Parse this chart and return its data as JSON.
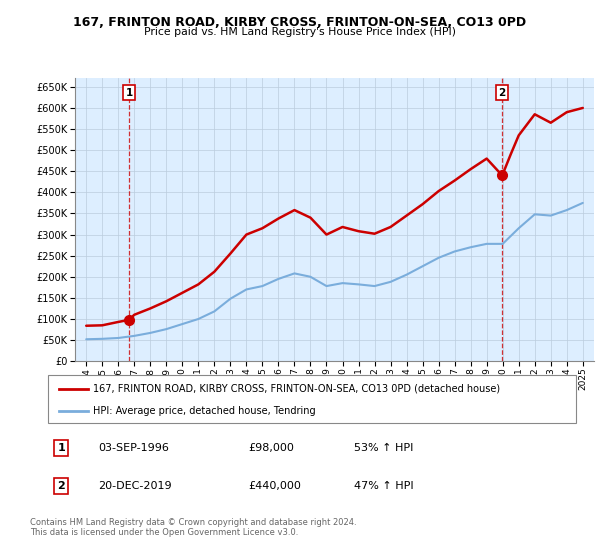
{
  "title": "167, FRINTON ROAD, KIRBY CROSS, FRINTON-ON-SEA, CO13 0PD",
  "subtitle": "Price paid vs. HM Land Registry's House Price Index (HPI)",
  "legend_line1": "167, FRINTON ROAD, KIRBY CROSS, FRINTON-ON-SEA, CO13 0PD (detached house)",
  "legend_line2": "HPI: Average price, detached house, Tendring",
  "sale1_label": "1",
  "sale1_date": "03-SEP-1996",
  "sale1_price": "£98,000",
  "sale1_hpi": "53% ↑ HPI",
  "sale1_year": 1996.67,
  "sale1_value": 98000,
  "sale2_label": "2",
  "sale2_date": "20-DEC-2019",
  "sale2_price": "£440,000",
  "sale2_hpi": "47% ↑ HPI",
  "sale2_year": 2019.97,
  "sale2_value": 440000,
  "footer": "Contains HM Land Registry data © Crown copyright and database right 2024.\nThis data is licensed under the Open Government Licence v3.0.",
  "red_color": "#cc0000",
  "blue_color": "#7aaddc",
  "background_color": "#ffffff",
  "plot_bg_color": "#ddeeff",
  "grid_color": "#bbccdd",
  "ylim": [
    0,
    670000
  ],
  "yticks": [
    0,
    50000,
    100000,
    150000,
    200000,
    250000,
    300000,
    350000,
    400000,
    450000,
    500000,
    550000,
    600000,
    650000
  ],
  "hpi_data": {
    "years": [
      1994.0,
      1995.0,
      1996.0,
      1997.0,
      1998.0,
      1999.0,
      2000.0,
      2001.0,
      2002.0,
      2003.0,
      2004.0,
      2005.0,
      2006.0,
      2007.0,
      2008.0,
      2009.0,
      2010.0,
      2011.0,
      2012.0,
      2013.0,
      2014.0,
      2015.0,
      2016.0,
      2017.0,
      2018.0,
      2019.0,
      2020.0,
      2021.0,
      2022.0,
      2023.0,
      2024.0,
      2025.0
    ],
    "values": [
      52000,
      53000,
      55000,
      60000,
      67000,
      76000,
      88000,
      100000,
      118000,
      148000,
      170000,
      178000,
      195000,
      208000,
      200000,
      178000,
      185000,
      182000,
      178000,
      188000,
      205000,
      225000,
      245000,
      260000,
      270000,
      278000,
      278000,
      315000,
      348000,
      345000,
      358000,
      375000
    ]
  },
  "property_data": {
    "years": [
      1994.0,
      1995.0,
      1996.0,
      1996.67,
      1997.0,
      1998.0,
      1999.0,
      2000.0,
      2001.0,
      2002.0,
      2003.0,
      2004.0,
      2005.0,
      2006.0,
      2007.0,
      2008.0,
      2009.0,
      2010.0,
      2011.0,
      2012.0,
      2013.0,
      2014.0,
      2015.0,
      2016.0,
      2017.0,
      2018.0,
      2019.0,
      2019.97,
      2020.5,
      2021.0,
      2022.0,
      2023.0,
      2024.0,
      2025.0
    ],
    "values": [
      84000,
      85000,
      93000,
      98000,
      110000,
      125000,
      142000,
      162000,
      182000,
      212000,
      255000,
      300000,
      315000,
      338000,
      358000,
      340000,
      300000,
      318000,
      308000,
      302000,
      318000,
      345000,
      372000,
      403000,
      428000,
      455000,
      480000,
      440000,
      490000,
      535000,
      585000,
      565000,
      590000,
      600000
    ]
  }
}
